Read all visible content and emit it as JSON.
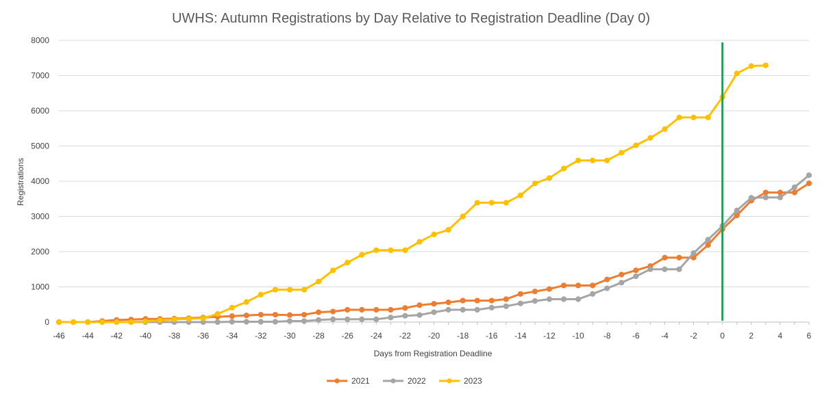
{
  "chart_data": {
    "type": "line",
    "title": "UWHS:  Autumn Registrations by Day Relative to Registration Deadline (Day 0)",
    "xlabel": "Days from Registration Deadline",
    "ylabel": "Registrations",
    "xlim": [
      -46,
      6
    ],
    "ylim": [
      0,
      8000
    ],
    "x_ticks": [
      -46,
      -44,
      -42,
      -40,
      -38,
      -36,
      -34,
      -32,
      -30,
      -28,
      -26,
      -24,
      -22,
      -20,
      -18,
      -16,
      -14,
      -12,
      -10,
      -8,
      -6,
      -4,
      -2,
      0,
      2,
      4,
      6
    ],
    "y_ticks": [
      0,
      1000,
      2000,
      3000,
      4000,
      5000,
      6000,
      7000,
      8000
    ],
    "grid": "horizontal",
    "legend_position": "bottom",
    "reference_line": {
      "x": 0,
      "color": "#00B050"
    },
    "series": [
      {
        "name": "2021",
        "color": "#ED7D31",
        "x": [
          -46,
          -45,
          -44,
          -43,
          -42,
          -41,
          -40,
          -39,
          -38,
          -37,
          -36,
          -35,
          -34,
          -33,
          -32,
          -31,
          -30,
          -29,
          -28,
          -27,
          -26,
          -25,
          -24,
          -23,
          -22,
          -21,
          -20,
          -19,
          -18,
          -17,
          -16,
          -15,
          -14,
          -13,
          -12,
          -11,
          -10,
          -9,
          -8,
          -7,
          -6,
          -5,
          -4,
          -3,
          -2,
          -1,
          0,
          1,
          2,
          3,
          4,
          5,
          6
        ],
        "y": [
          0,
          0,
          0,
          30,
          60,
          70,
          90,
          90,
          100,
          110,
          130,
          150,
          170,
          190,
          210,
          210,
          200,
          210,
          280,
          300,
          350,
          350,
          350,
          350,
          400,
          480,
          520,
          560,
          610,
          610,
          610,
          650,
          800,
          870,
          940,
          1040,
          1040,
          1040,
          1210,
          1350,
          1470,
          1590,
          1830,
          1830,
          1830,
          2190,
          2640,
          3030,
          3450,
          3680,
          3680,
          3680,
          3940
        ]
      },
      {
        "name": "2022",
        "color": "#A5A5A5",
        "x": [
          -46,
          -45,
          -44,
          -43,
          -42,
          -41,
          -40,
          -39,
          -38,
          -37,
          -36,
          -35,
          -34,
          -33,
          -32,
          -31,
          -30,
          -29,
          -28,
          -27,
          -26,
          -25,
          -24,
          -23,
          -22,
          -21,
          -20,
          -19,
          -18,
          -17,
          -16,
          -15,
          -14,
          -13,
          -12,
          -11,
          -10,
          -9,
          -8,
          -7,
          -6,
          -5,
          -4,
          -3,
          -2,
          -1,
          0,
          1,
          2,
          3,
          4,
          5,
          6
        ],
        "y": [
          0,
          0,
          0,
          0,
          0,
          0,
          0,
          0,
          0,
          0,
          0,
          0,
          10,
          10,
          10,
          10,
          30,
          30,
          60,
          80,
          80,
          80,
          80,
          130,
          180,
          200,
          280,
          350,
          350,
          350,
          410,
          450,
          530,
          600,
          650,
          650,
          650,
          800,
          960,
          1120,
          1300,
          1500,
          1500,
          1500,
          1960,
          2340,
          2730,
          3170,
          3530,
          3540,
          3540,
          3830,
          4170
        ]
      },
      {
        "name": "2023",
        "color": "#FFC000",
        "x": [
          -46,
          -45,
          -44,
          -43,
          -42,
          -41,
          -40,
          -39,
          -38,
          -37,
          -36,
          -35,
          -34,
          -33,
          -32,
          -31,
          -30,
          -29,
          -28,
          -27,
          -26,
          -25,
          -24,
          -23,
          -22,
          -21,
          -20,
          -19,
          -18,
          -17,
          -16,
          -15,
          -14,
          -13,
          -12,
          -11,
          -10,
          -9,
          -8,
          -7,
          -6,
          -5,
          -4,
          -3,
          -2,
          -1,
          0,
          1,
          2,
          3
        ],
        "y": [
          0,
          0,
          0,
          0,
          0,
          0,
          20,
          50,
          80,
          90,
          110,
          230,
          410,
          570,
          780,
          920,
          920,
          920,
          1150,
          1470,
          1690,
          1910,
          2040,
          2040,
          2040,
          2280,
          2490,
          2620,
          3000,
          3390,
          3390,
          3390,
          3600,
          3940,
          4090,
          4360,
          4590,
          4590,
          4590,
          4810,
          5020,
          5230,
          5480,
          5810,
          5810,
          5810,
          6390,
          7060,
          7270,
          7290
        ]
      }
    ]
  }
}
